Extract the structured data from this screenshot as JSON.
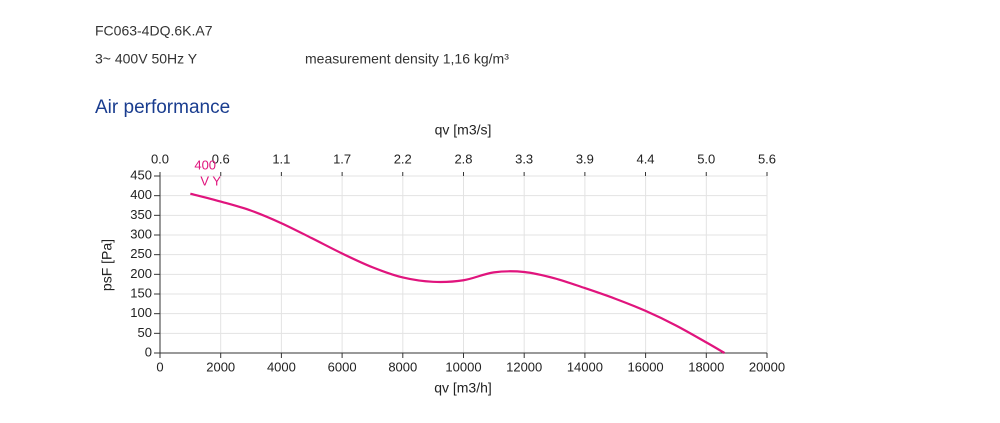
{
  "header": {
    "model": "FC063-4DQ.6K.A7",
    "supply": "3~ 400V 50Hz Y",
    "density": "measurement density 1,16 kg/m³",
    "section": "Air performance"
  },
  "chart_data": {
    "type": "line",
    "xlabel": "qv [m3/h]",
    "x2label": "qv [m3/s]",
    "ylabel": "psF [Pa]",
    "xlim": [
      0,
      20000
    ],
    "xticks": [
      0,
      2000,
      4000,
      6000,
      8000,
      10000,
      12000,
      14000,
      16000,
      18000,
      20000
    ],
    "x2lim": [
      0,
      5.556
    ],
    "x2ticks": [
      {
        "value": 0,
        "label": "0.0"
      },
      {
        "value": 0.556,
        "label": "0.6"
      },
      {
        "value": 1.111,
        "label": "1.1"
      },
      {
        "value": 1.667,
        "label": "1.7"
      },
      {
        "value": 2.222,
        "label": "2.2"
      },
      {
        "value": 2.778,
        "label": "2.8"
      },
      {
        "value": 3.333,
        "label": "3.3"
      },
      {
        "value": 3.889,
        "label": "3.9"
      },
      {
        "value": 4.444,
        "label": "4.4"
      },
      {
        "value": 5.0,
        "label": "5.0"
      },
      {
        "value": 5.556,
        "label": "5.6"
      }
    ],
    "ylim": [
      0,
      450
    ],
    "yticks": [
      0,
      50,
      100,
      150,
      200,
      250,
      300,
      350,
      400,
      450
    ],
    "grid": true,
    "series": [
      {
        "labels": [
          "400",
          "V Y"
        ],
        "color": "#e0147d",
        "x": [
          1000,
          2000,
          3000,
          4000,
          5000,
          6000,
          7000,
          8000,
          9000,
          10000,
          11000,
          12000,
          13000,
          14000,
          15000,
          16000,
          17000,
          18000,
          18600
        ],
        "values": [
          405,
          385,
          362,
          330,
          292,
          253,
          218,
          192,
          181,
          185,
          205,
          206,
          190,
          165,
          138,
          107,
          70,
          27,
          0
        ]
      }
    ]
  }
}
